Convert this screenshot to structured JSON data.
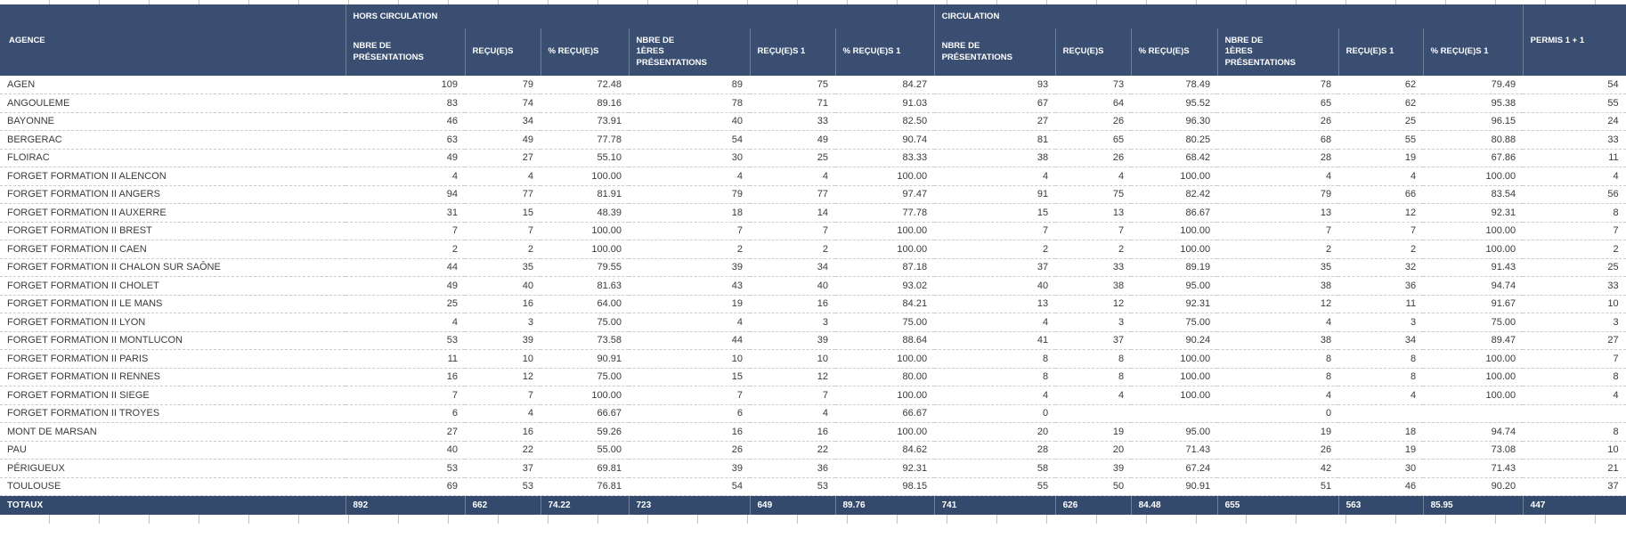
{
  "colors": {
    "header-bg": "#394e71",
    "totals-bg": "#344a6c",
    "row-text": "#3a3a3a",
    "dash": "#cccccc",
    "tick": "#c4c4c4"
  },
  "table": {
    "headers": {
      "agence": "AGENCE",
      "group_hors": "HORS CIRCULATION",
      "group_circ": "CIRCULATION",
      "permis": "PERMIS 1 + 1",
      "sub": [
        "NBRE DE\nPRÉSENTATIONS",
        "REÇU(E)S",
        "% REÇU(E)S",
        "NBRE DE\n1ÈRES\nPRÉSENTATIONS",
        "REÇU(E)S 1",
        "% REÇU(E)S 1"
      ]
    },
    "rows": [
      {
        "agence": "AGEN",
        "values": [
          "109",
          "79",
          "72.48",
          "89",
          "75",
          "84.27",
          "93",
          "73",
          "78.49",
          "78",
          "62",
          "79.49",
          "54"
        ]
      },
      {
        "agence": "ANGOULEME",
        "values": [
          "83",
          "74",
          "89.16",
          "78",
          "71",
          "91.03",
          "67",
          "64",
          "95.52",
          "65",
          "62",
          "95.38",
          "55"
        ]
      },
      {
        "agence": "BAYONNE",
        "values": [
          "46",
          "34",
          "73.91",
          "40",
          "33",
          "82.50",
          "27",
          "26",
          "96.30",
          "26",
          "25",
          "96.15",
          "24"
        ]
      },
      {
        "agence": "BERGERAC",
        "values": [
          "63",
          "49",
          "77.78",
          "54",
          "49",
          "90.74",
          "81",
          "65",
          "80.25",
          "68",
          "55",
          "80.88",
          "33"
        ]
      },
      {
        "agence": "FLOIRAC",
        "values": [
          "49",
          "27",
          "55.10",
          "30",
          "25",
          "83.33",
          "38",
          "26",
          "68.42",
          "28",
          "19",
          "67.86",
          "11"
        ]
      },
      {
        "agence": "FORGET FORMATION II ALENCON",
        "values": [
          "4",
          "4",
          "100.00",
          "4",
          "4",
          "100.00",
          "4",
          "4",
          "100.00",
          "4",
          "4",
          "100.00",
          "4"
        ]
      },
      {
        "agence": "FORGET FORMATION II ANGERS",
        "values": [
          "94",
          "77",
          "81.91",
          "79",
          "77",
          "97.47",
          "91",
          "75",
          "82.42",
          "79",
          "66",
          "83.54",
          "56"
        ]
      },
      {
        "agence": "FORGET FORMATION II AUXERRE",
        "values": [
          "31",
          "15",
          "48.39",
          "18",
          "14",
          "77.78",
          "15",
          "13",
          "86.67",
          "13",
          "12",
          "92.31",
          "8"
        ]
      },
      {
        "agence": "FORGET FORMATION II BREST",
        "values": [
          "7",
          "7",
          "100.00",
          "7",
          "7",
          "100.00",
          "7",
          "7",
          "100.00",
          "7",
          "7",
          "100.00",
          "7"
        ]
      },
      {
        "agence": "FORGET FORMATION II CAEN",
        "values": [
          "2",
          "2",
          "100.00",
          "2",
          "2",
          "100.00",
          "2",
          "2",
          "100.00",
          "2",
          "2",
          "100.00",
          "2"
        ]
      },
      {
        "agence": "FORGET FORMATION II CHALON SUR SAÔNE",
        "values": [
          "44",
          "35",
          "79.55",
          "39",
          "34",
          "87.18",
          "37",
          "33",
          "89.19",
          "35",
          "32",
          "91.43",
          "25"
        ]
      },
      {
        "agence": "FORGET FORMATION II CHOLET",
        "values": [
          "49",
          "40",
          "81.63",
          "43",
          "40",
          "93.02",
          "40",
          "38",
          "95.00",
          "38",
          "36",
          "94.74",
          "33"
        ]
      },
      {
        "agence": "FORGET FORMATION II LE MANS",
        "values": [
          "25",
          "16",
          "64.00",
          "19",
          "16",
          "84.21",
          "13",
          "12",
          "92.31",
          "12",
          "11",
          "91.67",
          "10"
        ]
      },
      {
        "agence": "FORGET FORMATION II LYON",
        "values": [
          "4",
          "3",
          "75.00",
          "4",
          "3",
          "75.00",
          "4",
          "3",
          "75.00",
          "4",
          "3",
          "75.00",
          "3"
        ]
      },
      {
        "agence": "FORGET FORMATION II MONTLUCON",
        "values": [
          "53",
          "39",
          "73.58",
          "44",
          "39",
          "88.64",
          "41",
          "37",
          "90.24",
          "38",
          "34",
          "89.47",
          "27"
        ]
      },
      {
        "agence": "FORGET FORMATION II PARIS",
        "values": [
          "11",
          "10",
          "90.91",
          "10",
          "10",
          "100.00",
          "8",
          "8",
          "100.00",
          "8",
          "8",
          "100.00",
          "7"
        ]
      },
      {
        "agence": "FORGET FORMATION II RENNES",
        "values": [
          "16",
          "12",
          "75.00",
          "15",
          "12",
          "80.00",
          "8",
          "8",
          "100.00",
          "8",
          "8",
          "100.00",
          "8"
        ]
      },
      {
        "agence": "FORGET FORMATION II SIEGE",
        "values": [
          "7",
          "7",
          "100.00",
          "7",
          "7",
          "100.00",
          "4",
          "4",
          "100.00",
          "4",
          "4",
          "100.00",
          "4"
        ]
      },
      {
        "agence": "FORGET FORMATION II TROYES",
        "values": [
          "6",
          "4",
          "66.67",
          "6",
          "4",
          "66.67",
          "0",
          "",
          "",
          "0",
          "",
          "",
          ""
        ]
      },
      {
        "agence": "MONT DE MARSAN",
        "values": [
          "27",
          "16",
          "59.26",
          "16",
          "16",
          "100.00",
          "20",
          "19",
          "95.00",
          "19",
          "18",
          "94.74",
          "8"
        ]
      },
      {
        "agence": "PAU",
        "values": [
          "40",
          "22",
          "55.00",
          "26",
          "22",
          "84.62",
          "28",
          "20",
          "71.43",
          "26",
          "19",
          "73.08",
          "10"
        ]
      },
      {
        "agence": "PÉRIGUEUX",
        "values": [
          "53",
          "37",
          "69.81",
          "39",
          "36",
          "92.31",
          "58",
          "39",
          "67.24",
          "42",
          "30",
          "71.43",
          "21"
        ]
      },
      {
        "agence": "TOULOUSE",
        "values": [
          "69",
          "53",
          "76.81",
          "54",
          "53",
          "98.15",
          "55",
          "50",
          "90.91",
          "51",
          "46",
          "90.20",
          "37"
        ]
      }
    ],
    "totals": {
      "label": "TOTAUX",
      "values": [
        "892",
        "662",
        "74.22",
        "723",
        "649",
        "89.76",
        "741",
        "626",
        "84.48",
        "655",
        "563",
        "85.95",
        "447"
      ]
    }
  }
}
